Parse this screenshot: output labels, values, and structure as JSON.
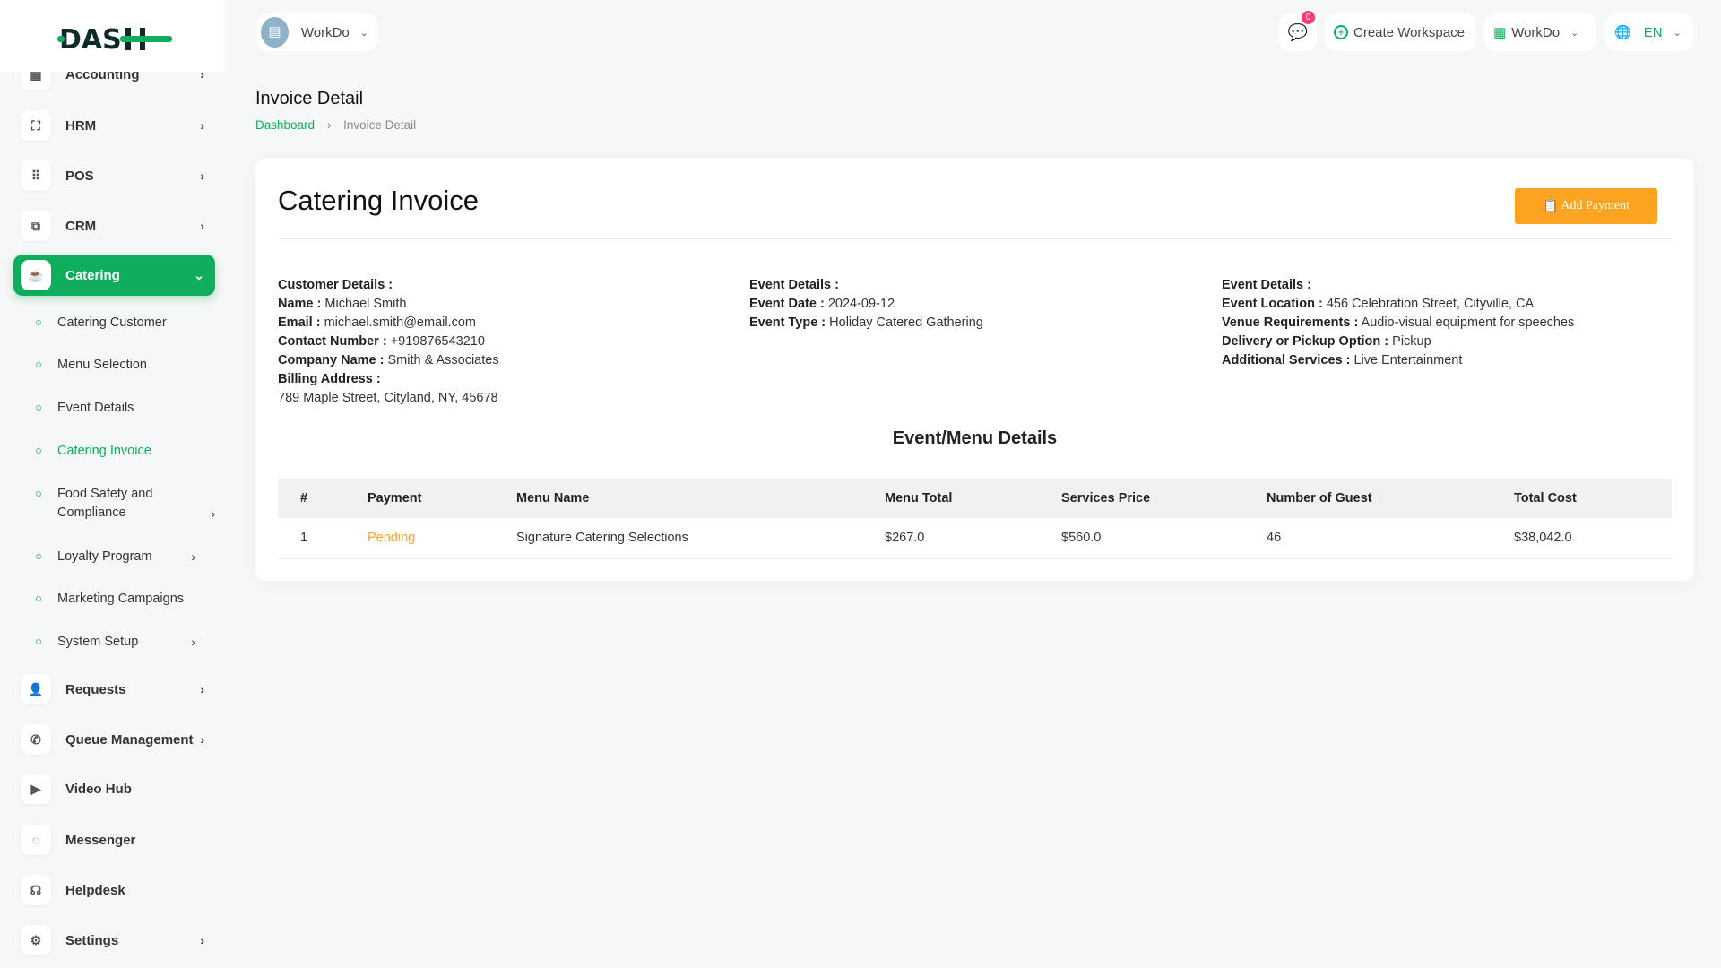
{
  "brand": {
    "logo_text": "DASH",
    "accent": "#0fae5d"
  },
  "header": {
    "workspace": "WorkDo",
    "chat_badge": "0",
    "create_workspace": "Create Workspace",
    "workdo": "WorkDo",
    "lang": "EN"
  },
  "sidebar": {
    "items": [
      {
        "label": "Accounting",
        "icon": "accounting-icon"
      },
      {
        "label": "HRM",
        "icon": "hrm-icon"
      },
      {
        "label": "POS",
        "icon": "pos-icon"
      },
      {
        "label": "CRM",
        "icon": "crm-icon"
      },
      {
        "label": "Catering",
        "icon": "coffee-icon",
        "active": true
      },
      {
        "label": "Requests",
        "icon": "user-plus-icon"
      },
      {
        "label": "Queue Management",
        "icon": "phone-icon"
      },
      {
        "label": "Video Hub",
        "icon": "video-icon"
      },
      {
        "label": "Messenger",
        "icon": "message-icon"
      },
      {
        "label": "Helpdesk",
        "icon": "headset-icon"
      },
      {
        "label": "Settings",
        "icon": "gear-icon"
      }
    ],
    "sub": [
      "Catering Customer",
      "Menu Selection",
      "Event Details",
      "Catering Invoice",
      "Food Safety and Compliance",
      "Loyalty Program",
      "Marketing Campaigns",
      "System Setup"
    ]
  },
  "page": {
    "title": "Invoice Detail",
    "breadcrumb": [
      "Dashboard",
      "Invoice Detail"
    ]
  },
  "invoice": {
    "title": "Catering Invoice",
    "add_payment": "Add Payment",
    "customer": {
      "heading": "Customer Details :",
      "name_l": "Name :",
      "name": "Michael Smith",
      "email_l": "Email :",
      "email": "michael.smith@email.com",
      "contact_l": "Contact Number :",
      "contact": "+919876543210",
      "company_l": "Company Name :",
      "company": "Smith & Associates",
      "billing_l": "Billing Address :",
      "billing": "789 Maple Street, Cityland, NY, 45678"
    },
    "event": {
      "heading": "Event Details :",
      "date_l": "Event Date :",
      "date": "2024-09-12",
      "type_l": "Event Type :",
      "type": "Holiday Catered Gathering"
    },
    "event2": {
      "heading": "Event Details :",
      "loc_l": "Event Location :",
      "loc": "456 Celebration Street, Cityville, CA",
      "venue_l": "Venue Requirements :",
      "venue": "Audio-visual equipment for speeches",
      "delivery_l": "Delivery or Pickup Option :",
      "delivery": "Pickup",
      "services_l": "Additional Services :",
      "services": "Live Entertainment"
    },
    "section": "Event/Menu Details",
    "columns": [
      "#",
      "Payment",
      "Menu Name",
      "Menu Total",
      "Services Price",
      "Number of Guest",
      "Total Cost"
    ],
    "rows": [
      [
        "1",
        "Pending",
        "Signature Catering Selections",
        "$267.0",
        "$560.0",
        "46",
        "$38,042.0"
      ]
    ]
  }
}
